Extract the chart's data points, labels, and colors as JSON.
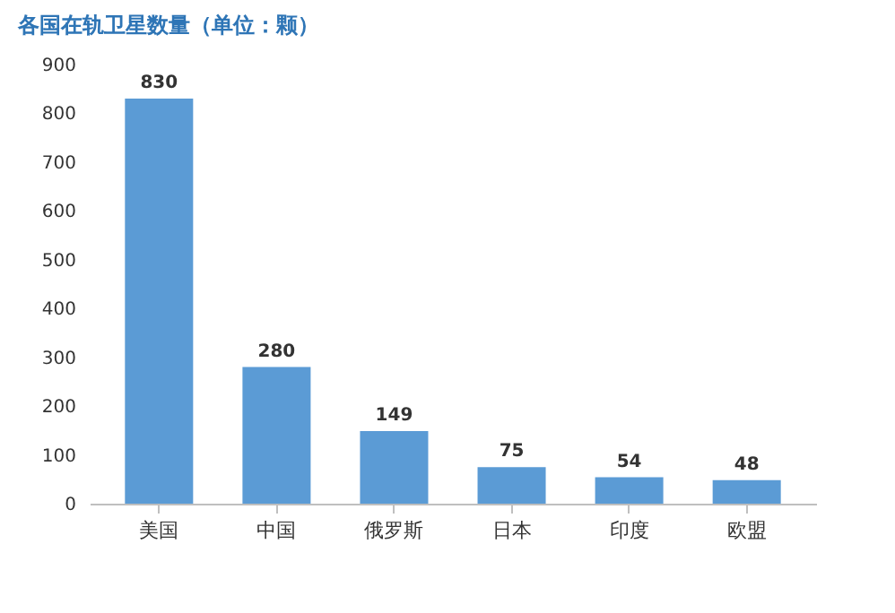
{
  "chart_data": {
    "type": "bar",
    "title": "各国在轨卫星数量（单位：颗）",
    "categories": [
      "美国",
      "中国",
      "俄罗斯",
      "日本",
      "印度",
      "欧盟"
    ],
    "values": [
      830,
      280,
      149,
      75,
      54,
      48
    ],
    "color": "#5b9bd5",
    "ylim": [
      0,
      900
    ],
    "yticks": [
      0,
      100,
      200,
      300,
      400,
      500,
      600,
      700,
      800,
      900
    ],
    "data_labels": true,
    "grid": false
  }
}
